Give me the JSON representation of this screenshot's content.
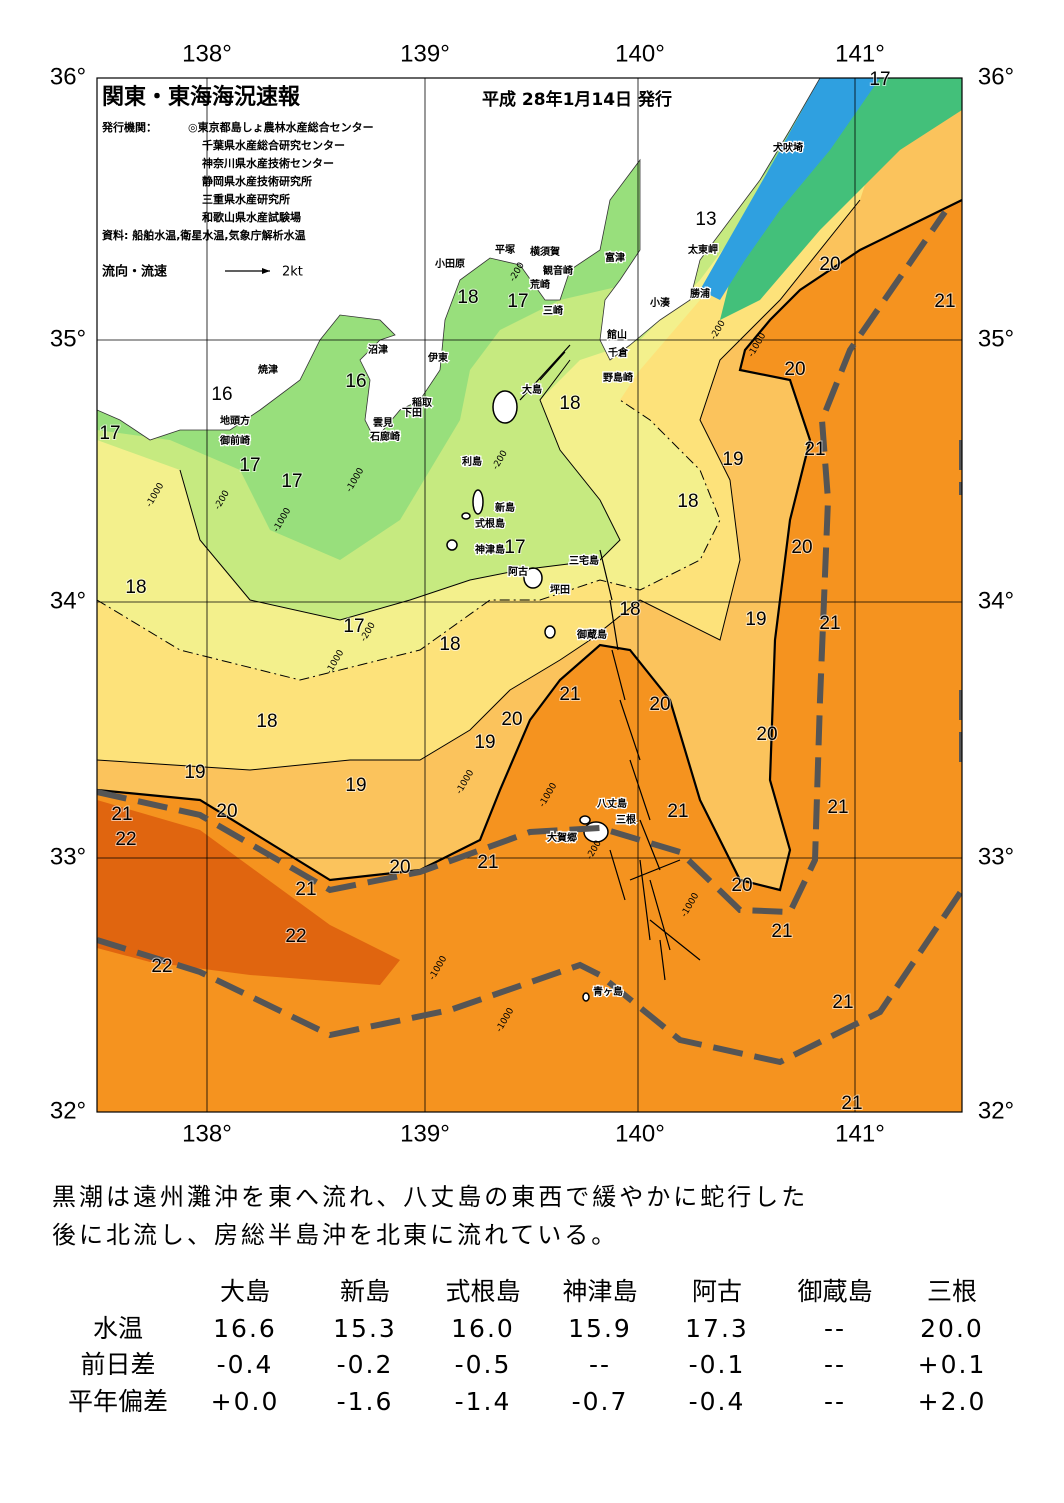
{
  "header": {
    "title": "関東・東海海況速報",
    "date": "平成 28年1月14日 発行"
  },
  "publishers": {
    "label": "発行機関：",
    "items": [
      "◎東京都島しょ農林水産総合センター",
      "千葉県水産総合研究センター",
      "神奈川県水産技術センター",
      "静岡県水産技術研究所",
      "三重県水産研究所",
      "和歌山県水産試験場"
    ]
  },
  "source": "資料: 船舶水温,衛星水温,気象庁解析水温",
  "legend": {
    "label": "流向・流速",
    "scale": "2kt"
  },
  "axes": {
    "top": [
      "138°",
      "139°",
      "140°",
      "141°"
    ],
    "bottom": [
      "138°",
      "139°",
      "140°",
      "141°"
    ],
    "left": [
      "36°",
      "35°",
      "34°",
      "33°",
      "32°"
    ],
    "right": [
      "36°",
      "35°",
      "34°",
      "33°",
      "32°"
    ]
  },
  "places": [
    "犬吠埼",
    "太東岬",
    "富津",
    "平塚",
    "横須賀",
    "観音崎",
    "小田原",
    "荒崎",
    "三崎",
    "勝浦",
    "小湊",
    "館山",
    "千倉",
    "野島崎",
    "沼津",
    "伊東",
    "焼津",
    "稲取",
    "下田",
    "雲見",
    "石廊崎",
    "大島",
    "地頭方",
    "御前崎",
    "利島",
    "新島",
    "式根島",
    "神津島",
    "阿古",
    "三宅島",
    "坪田",
    "御蔵島",
    "八丈島",
    "三根",
    "大賀郷",
    "青ヶ島"
  ],
  "isotherm_labels": [
    17,
    13,
    20,
    21,
    18,
    17,
    20,
    16,
    16,
    18,
    17,
    17,
    17,
    19,
    21,
    18,
    17,
    20,
    18,
    18,
    19,
    21,
    17,
    18,
    21,
    20,
    18,
    20,
    20,
    19,
    19,
    19,
    21,
    20,
    21,
    21,
    22,
    20,
    21,
    20,
    21,
    21,
    22,
    22,
    21,
    21
  ],
  "depth_labels": [
    "-1000",
    "-200",
    "-1000",
    "-1000",
    "-200",
    "-1000",
    "-1000",
    "-1000",
    "-200",
    "-1000",
    "-1000",
    "-1000",
    "-200",
    "-200",
    "-200",
    "-1000"
  ],
  "summary": [
    "黒潮は遠州灘沖を東へ流れ、八丈島の東西で緩やかに蛇行した",
    "後に北流し、房総半島沖を北東に流れている。"
  ],
  "table": {
    "columns": [
      "大島",
      "新島",
      "式根島",
      "神津島",
      "阿古",
      "御蔵島",
      "三根"
    ],
    "rows": [
      {
        "label": "水温",
        "values": [
          "16.6",
          "15.3",
          "16.0",
          "15.9",
          "17.3",
          "--",
          "20.0"
        ]
      },
      {
        "label": "前日差",
        "values": [
          "-0.4",
          "-0.2",
          "-0.5",
          "--",
          "-0.1",
          "--",
          "+0.1"
        ]
      },
      {
        "label": "平年偏差",
        "values": [
          "+0.0",
          "-1.6",
          "-1.4",
          "-0.7",
          "-0.4",
          "--",
          "+2.0"
        ]
      }
    ]
  }
}
